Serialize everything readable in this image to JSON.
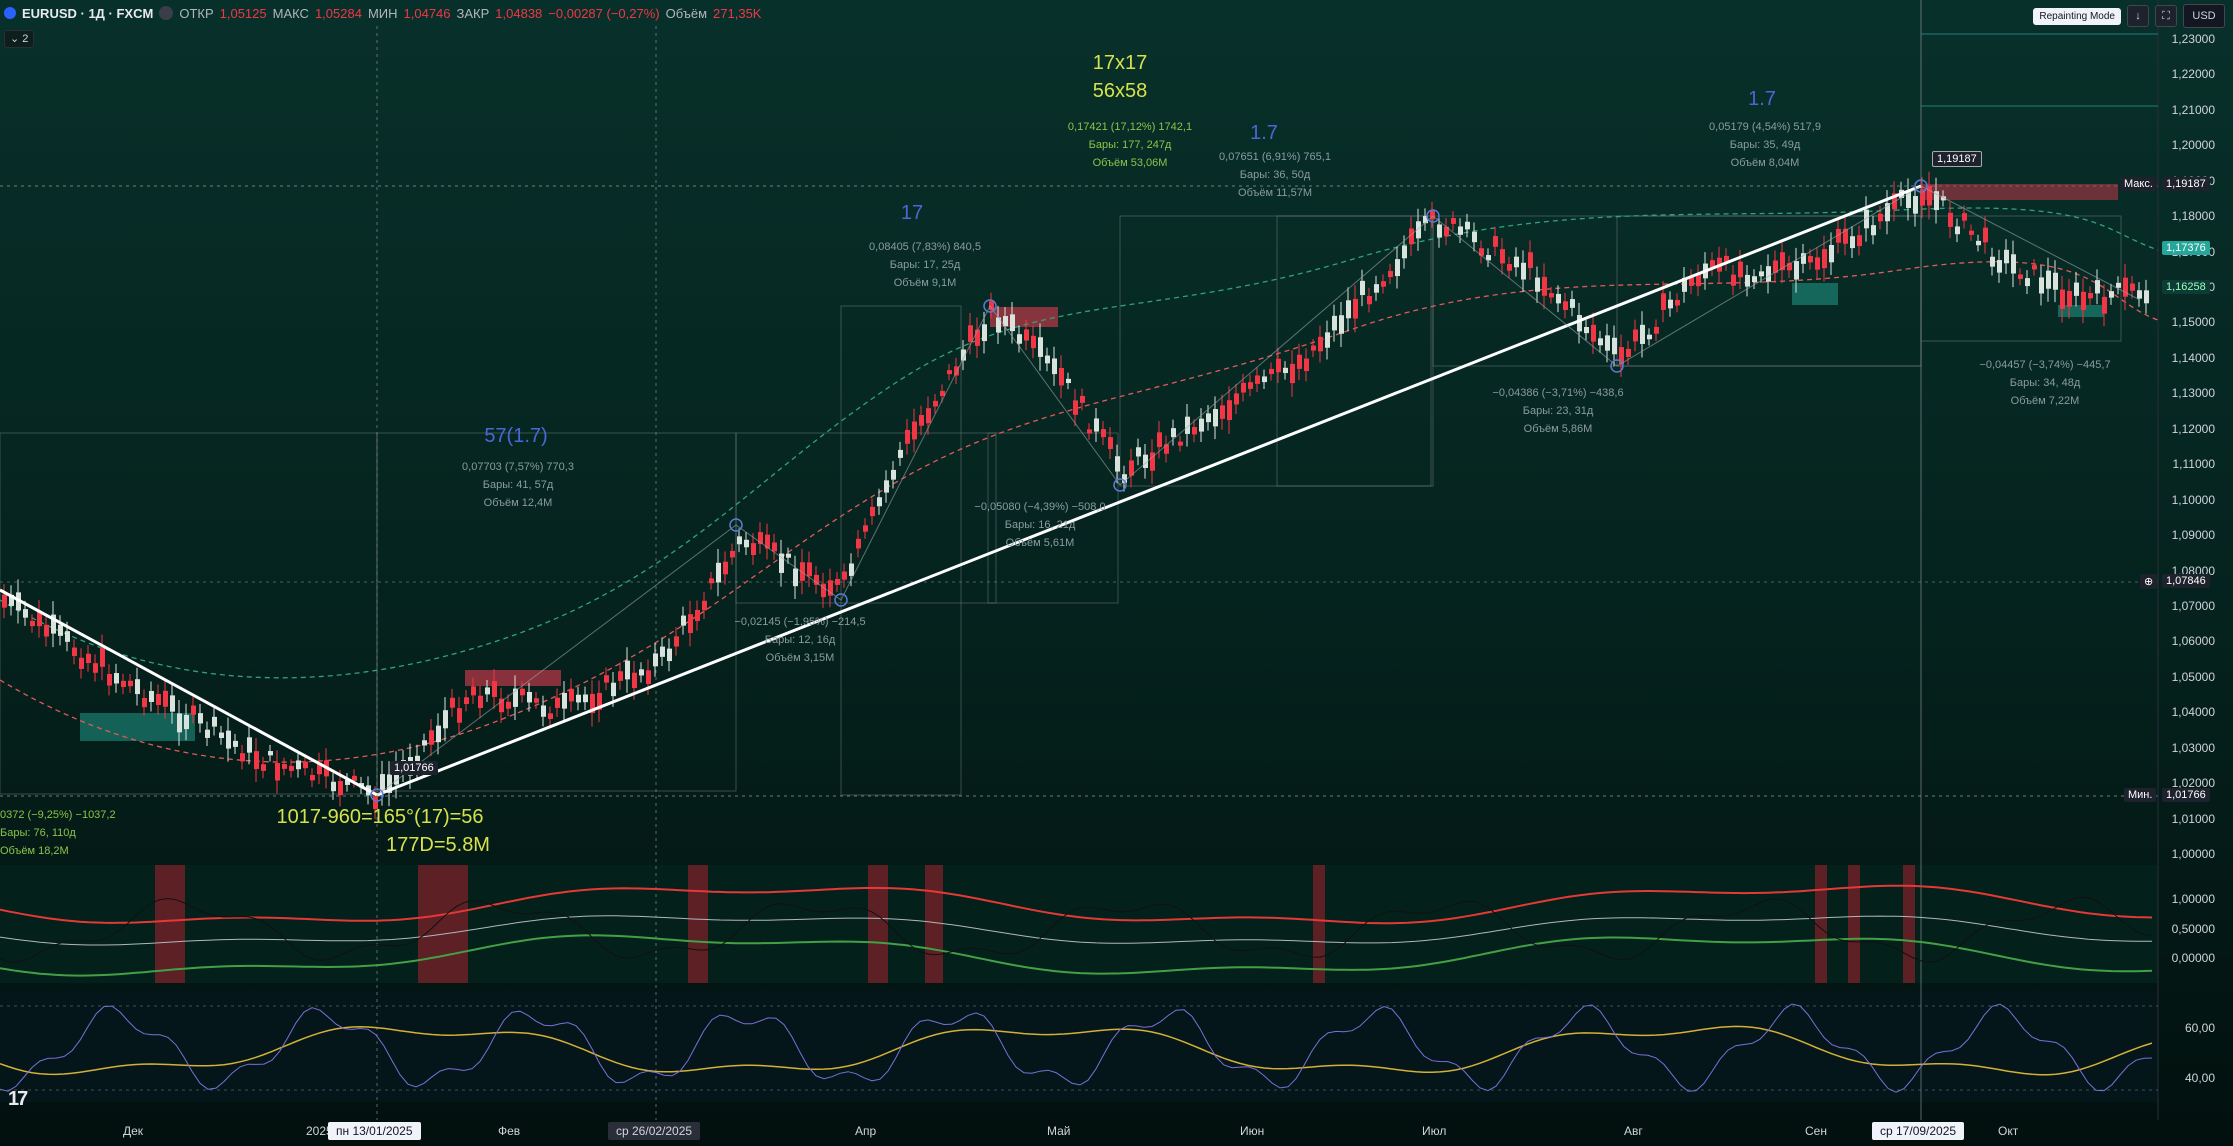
{
  "header": {
    "symbol": "EURUSD · 1Д · FXCM",
    "open_label": "ОТКР",
    "open": "1,05125",
    "high_label": "МАКС",
    "high": "1,05284",
    "low_label": "МИН",
    "low": "1,04746",
    "close_label": "ЗАКР",
    "close": "1,04838",
    "change": "−0,00287 (−0,27%)",
    "volume_label": "Объём",
    "volume": "271,35K",
    "collapse_count": "2"
  },
  "toolbar": {
    "repaint_label": "Repainting Mode",
    "currency": "USD"
  },
  "price_axis": [
    "1,23000",
    "1,22000",
    "1,21000",
    "1,20000",
    "1,19000",
    "1,18000",
    "1,17000",
    "1,16000",
    "1,15000",
    "1,14000",
    "1,13000",
    "1,12000",
    "1,11000",
    "1,10000",
    "1,09000",
    "1,08000",
    "1,07000",
    "1,06000",
    "1,05000",
    "1,04000",
    "1,03000",
    "1,02000",
    "1,01000",
    "1,00000"
  ],
  "price_tags": {
    "max_label": "Макс.",
    "max_value": "1,19187",
    "last_value": "1,17376",
    "prev_value": "1,16258",
    "cross_value": "1,07846",
    "min_label": "Мин.",
    "min_value": "1,01766",
    "peak_callout": "1,19187",
    "low_callout": "1,01766"
  },
  "osc1_axis": [
    "1,00000",
    "0,50000",
    "0,00000"
  ],
  "osc2_axis": [
    "60,00",
    "40,00"
  ],
  "time_axis": [
    "Дек",
    "2025",
    "Фев",
    "Апр",
    "Май",
    "Июн",
    "Июл",
    "Авг",
    "Сен",
    "Окт"
  ],
  "date_pills": [
    "пн 13/01/2025",
    "ср 26/02/2025",
    "ср 17/09/2025"
  ],
  "annotations": {
    "a17x17": "17x17",
    "a56x58": "56x58",
    "a17": "17",
    "a17_1": "1.7",
    "a17_2": "1.7",
    "a57": "57(1.7)",
    "formula1": "1017-960=165°(17)=56",
    "formula2": "177D=5.8M"
  },
  "measures": [
    {
      "l1": "0,17421 (17,12%) 1742,1",
      "l2": "Бары: 177, 247д",
      "l3": "Объём 53,06M"
    },
    {
      "l1": "0,07651 (6,91%) 765,1",
      "l2": "Бары: 36, 50д",
      "l3": "Объём 11,57M"
    },
    {
      "l1": "0,05179 (4,54%) 517,9",
      "l2": "Бары: 35, 49д",
      "l3": "Объём 8,04M"
    },
    {
      "l1": "0,08405 (7,83%) 840,5",
      "l2": "Бары: 17, 25д",
      "l3": "Объём 9,1M"
    },
    {
      "l1": "0,07703 (7,57%) 770,3",
      "l2": "Бары: 41, 57д",
      "l3": "Объём 12,4M"
    },
    {
      "l1": "−0,05080 (−4,39%) −508,0",
      "l2": "Бары: 16, 21д",
      "l3": "Объём 5,61M"
    },
    {
      "l1": "−0,02145 (−1,95%) −214,5",
      "l2": "Бары: 12, 16д",
      "l3": "Объём 3,15M"
    },
    {
      "l1": "−0,04386 (−3,71%) −438,6",
      "l2": "Бары: 23, 31д",
      "l3": "Объём 5,86M"
    },
    {
      "l1": "−0,04457 (−3,74%) −445,7",
      "l2": "Бары: 34, 48д",
      "l3": "Объём 7,22M"
    },
    {
      "l1": "0372 (−9,25%) −1037,2",
      "l2": "Бары: 76, 110д",
      "l3": "Объём 18,2M"
    }
  ],
  "colors": {
    "bull": "#d9e3dd",
    "bear": "#f23645",
    "trend": "#ffffff",
    "accent": "#2962ff",
    "yellow": "#d7e24a",
    "blue": "#4b67d6"
  }
}
